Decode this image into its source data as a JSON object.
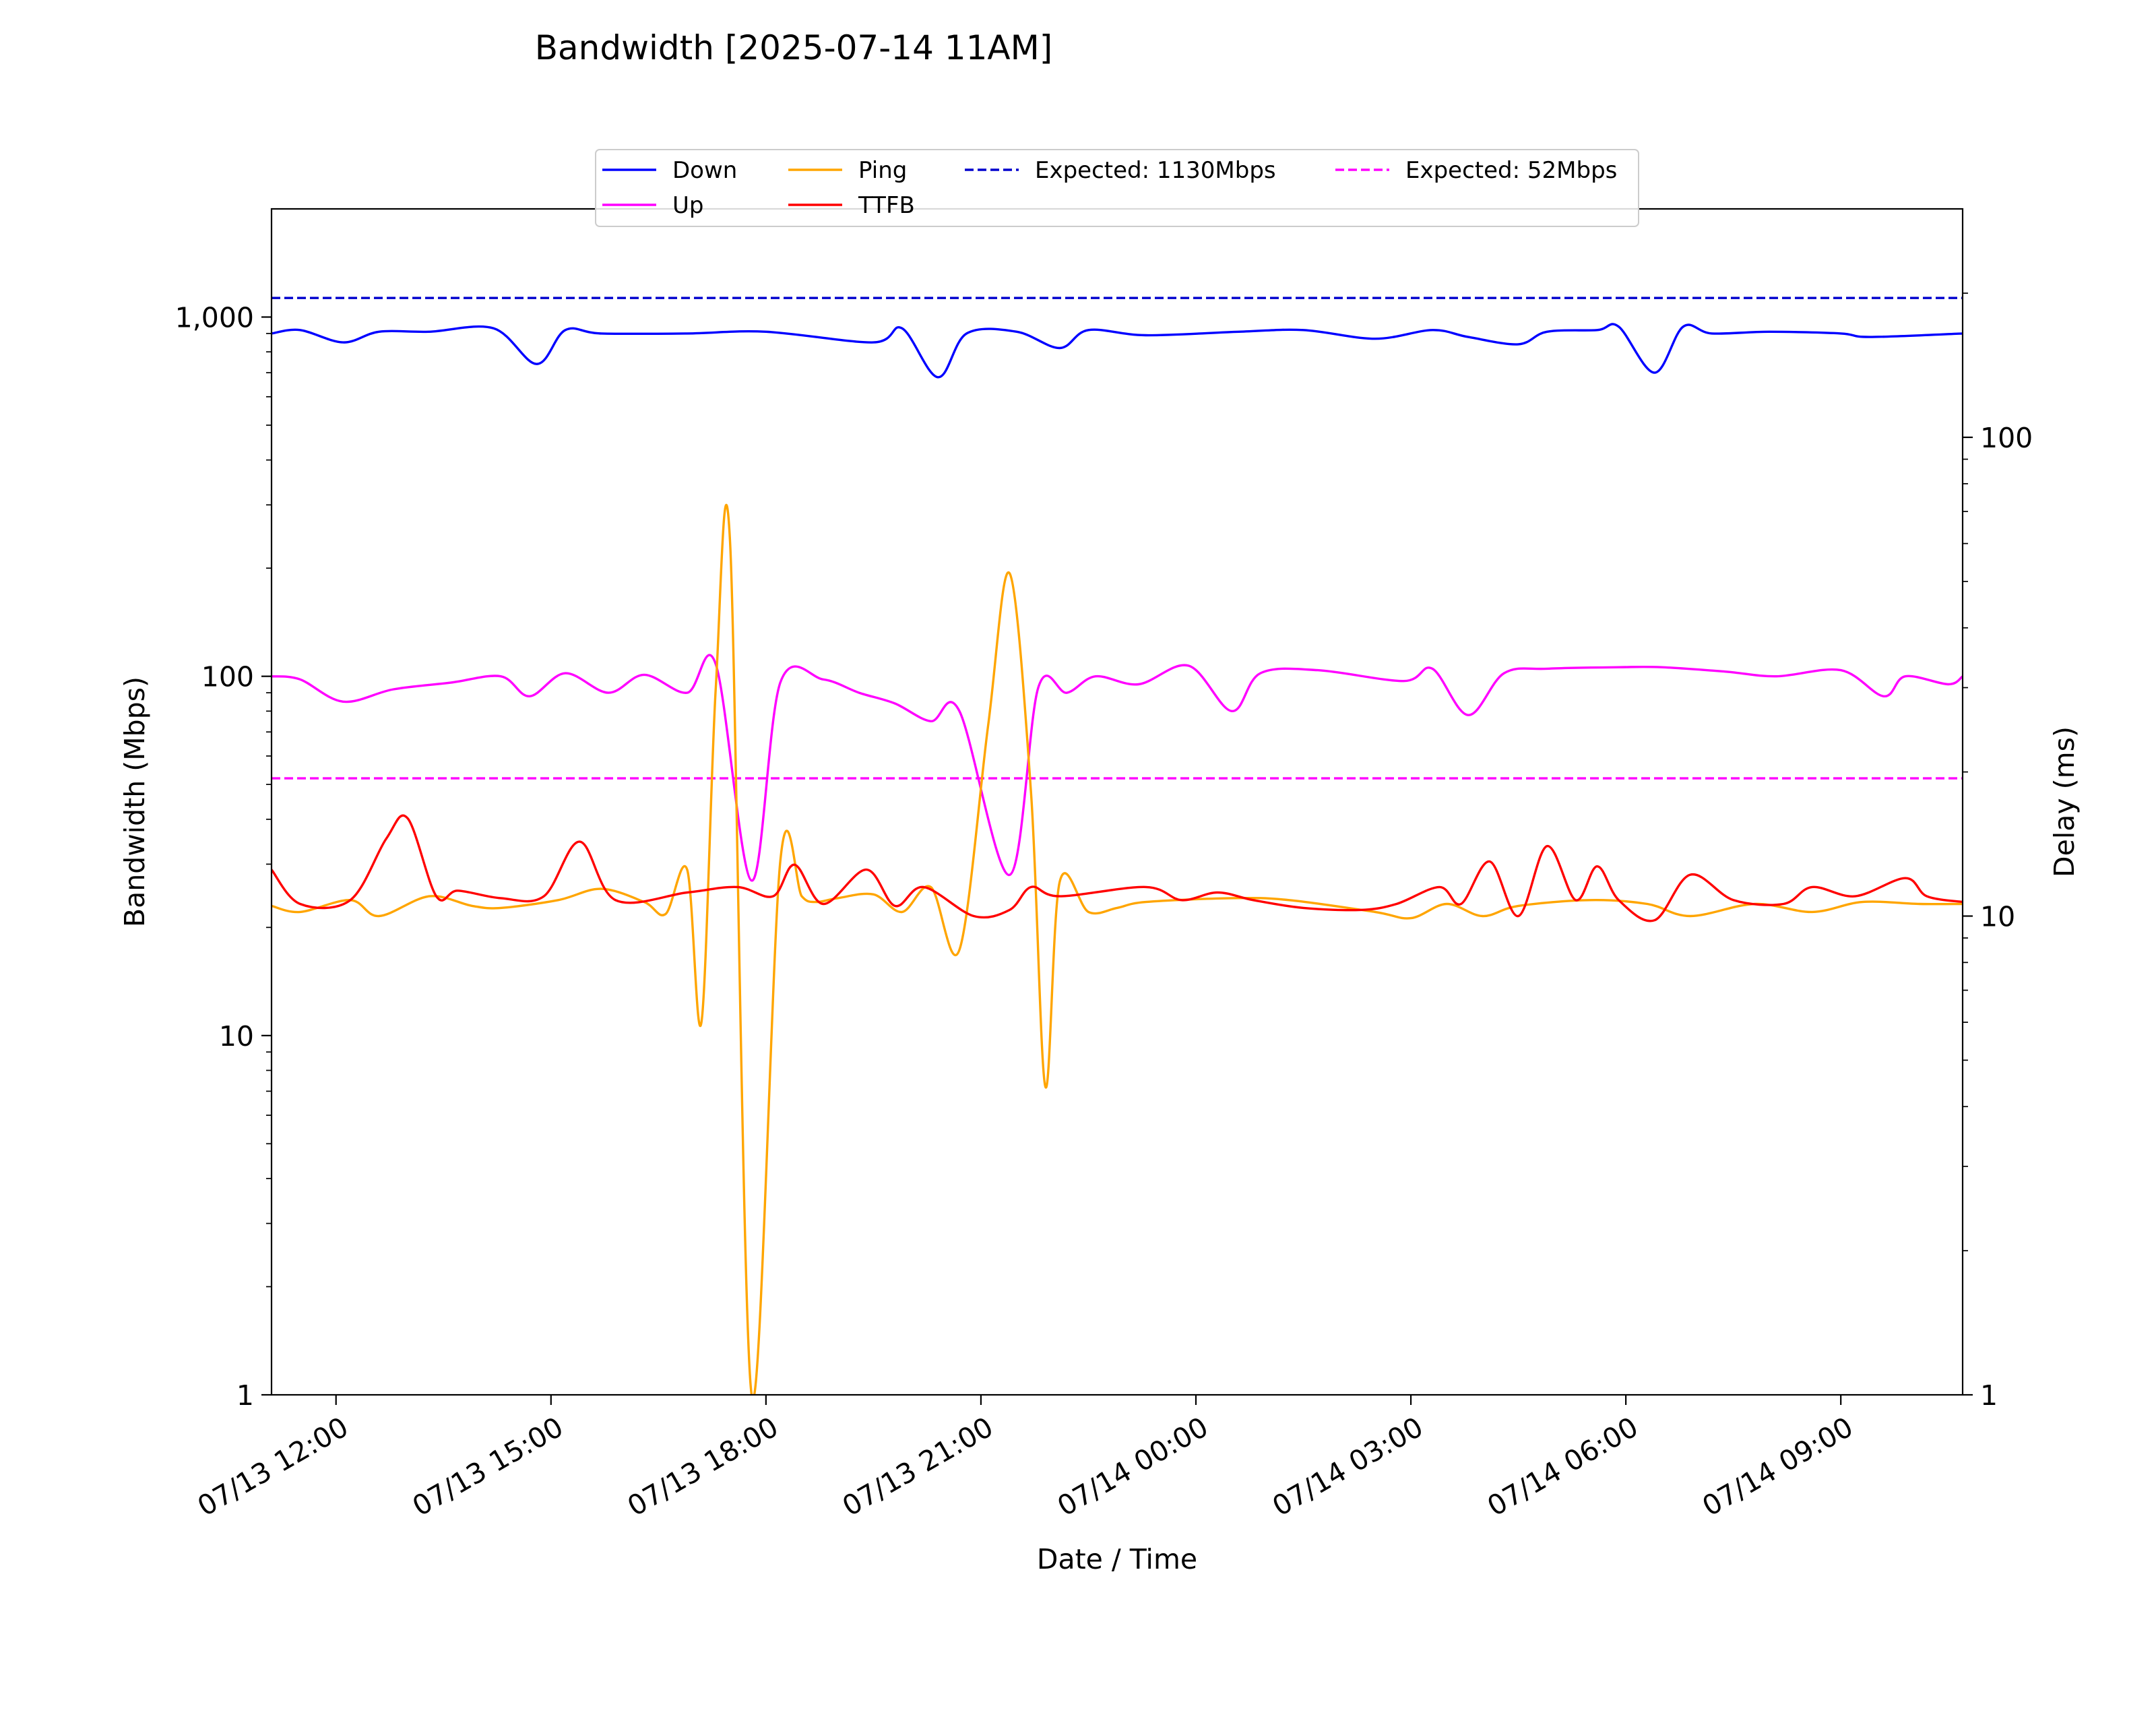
{
  "chart_data": {
    "type": "line",
    "title": "Bandwidth [2025-07-14 11AM]",
    "xlabel": "Date / Time",
    "ylabel": "Bandwidth (Mbps)",
    "y2label": "Delay (ms)",
    "x_range": [
      "2025-07-13 11:06",
      "2025-07-14 10:42"
    ],
    "ylim": [
      1,
      2000
    ],
    "y2lim": [
      1,
      300
    ],
    "yscale": "log",
    "y2scale": "log",
    "grid": false,
    "legend_position": "top-center",
    "x_ticks": [
      {
        "t": "2025-07-13 12:00",
        "label": "07/13 12:00"
      },
      {
        "t": "2025-07-13 15:00",
        "label": "07/13 15:00"
      },
      {
        "t": "2025-07-13 18:00",
        "label": "07/13 18:00"
      },
      {
        "t": "2025-07-13 21:00",
        "label": "07/13 21:00"
      },
      {
        "t": "2025-07-14 00:00",
        "label": "07/14 00:00"
      },
      {
        "t": "2025-07-14 03:00",
        "label": "07/14 03:00"
      },
      {
        "t": "2025-07-14 06:00",
        "label": "07/14 06:00"
      },
      {
        "t": "2025-07-14 09:00",
        "label": "07/14 09:00"
      }
    ],
    "y_ticks": [
      {
        "value": 1,
        "label": "1"
      },
      {
        "value": 10,
        "label": "10"
      },
      {
        "value": 100,
        "label": "100"
      },
      {
        "value": 1000,
        "label": "1,000"
      }
    ],
    "y2_ticks": [
      {
        "value": 1,
        "label": "1"
      },
      {
        "value": 10,
        "label": "10"
      },
      {
        "value": 100,
        "label": "100"
      }
    ],
    "series": [
      {
        "name": "Down",
        "axis": "left",
        "color": "#0000ff",
        "style": "solid",
        "x": [
          "2025-07-13 11:06",
          "2025-07-13 11:30",
          "2025-07-13 12:06",
          "2025-07-13 12:36",
          "2025-07-13 13:18",
          "2025-07-13 14:12",
          "2025-07-13 14:48",
          "2025-07-13 15:12",
          "2025-07-13 15:42",
          "2025-07-13 16:54",
          "2025-07-13 18:00",
          "2025-07-13 19:30",
          "2025-07-13 19:54",
          "2025-07-13 20:24",
          "2025-07-13 20:48",
          "2025-07-13 21:30",
          "2025-07-13 22:06",
          "2025-07-13 22:30",
          "2025-07-13 23:18",
          "2025-07-14 00:36",
          "2025-07-14 01:30",
          "2025-07-14 02:30",
          "2025-07-14 03:18",
          "2025-07-14 03:48",
          "2025-07-14 04:30",
          "2025-07-14 04:54",
          "2025-07-14 05:36",
          "2025-07-14 05:54",
          "2025-07-14 06:24",
          "2025-07-14 06:48",
          "2025-07-14 07:12",
          "2025-07-14 08:00",
          "2025-07-14 09:00",
          "2025-07-14 09:24",
          "2025-07-14 10:42"
        ],
        "values": [
          900,
          920,
          850,
          910,
          910,
          930,
          740,
          920,
          900,
          900,
          910,
          850,
          930,
          680,
          900,
          910,
          820,
          920,
          890,
          910,
          920,
          870,
          920,
          880,
          840,
          910,
          920,
          940,
          700,
          940,
          900,
          910,
          900,
          880,
          900
        ]
      },
      {
        "name": "Up",
        "axis": "left",
        "color": "#ff00ff",
        "style": "solid",
        "x": [
          "2025-07-13 11:06",
          "2025-07-13 11:30",
          "2025-07-13 12:06",
          "2025-07-13 12:48",
          "2025-07-13 13:36",
          "2025-07-13 14:18",
          "2025-07-13 14:42",
          "2025-07-13 15:12",
          "2025-07-13 15:48",
          "2025-07-13 16:18",
          "2025-07-13 16:54",
          "2025-07-13 17:18",
          "2025-07-13 17:48",
          "2025-07-13 18:12",
          "2025-07-13 18:48",
          "2025-07-13 19:18",
          "2025-07-13 19:48",
          "2025-07-13 20:18",
          "2025-07-13 20:42",
          "2025-07-13 21:24",
          "2025-07-13 21:48",
          "2025-07-13 22:12",
          "2025-07-13 22:36",
          "2025-07-13 23:12",
          "2025-07-13 23:54",
          "2025-07-14 00:30",
          "2025-07-14 00:54",
          "2025-07-14 01:42",
          "2025-07-14 02:54",
          "2025-07-14 03:18",
          "2025-07-14 03:48",
          "2025-07-14 04:18",
          "2025-07-14 04:54",
          "2025-07-14 05:54",
          "2025-07-14 06:30",
          "2025-07-14 07:24",
          "2025-07-14 08:06",
          "2025-07-14 09:00",
          "2025-07-14 09:36",
          "2025-07-14 09:54",
          "2025-07-14 10:30",
          "2025-07-14 10:42"
        ],
        "values": [
          100,
          98,
          85,
          92,
          96,
          100,
          88,
          102,
          90,
          101,
          90,
          108,
          27,
          96,
          98,
          90,
          84,
          75,
          80,
          28,
          93,
          90,
          100,
          95,
          107,
          80,
          102,
          104,
          97,
          105,
          78,
          102,
          105,
          106,
          106,
          103,
          100,
          104,
          88,
          100,
          95,
          100
        ]
      },
      {
        "name": "Ping",
        "axis": "right",
        "color": "#ffa500",
        "style": "solid",
        "x": [
          "2025-07-13 11:06",
          "2025-07-13 11:30",
          "2025-07-13 12:12",
          "2025-07-13 12:36",
          "2025-07-13 13:18",
          "2025-07-13 13:54",
          "2025-07-13 14:18",
          "2025-07-13 15:06",
          "2025-07-13 15:42",
          "2025-07-13 16:18",
          "2025-07-13 16:36",
          "2025-07-13 16:54",
          "2025-07-13 17:06",
          "2025-07-13 17:18",
          "2025-07-13 17:30",
          "2025-07-13 17:48",
          "2025-07-13 18:12",
          "2025-07-13 18:30",
          "2025-07-13 18:42",
          "2025-07-13 19:00",
          "2025-07-13 19:30",
          "2025-07-13 19:54",
          "2025-07-13 20:18",
          "2025-07-13 20:42",
          "2025-07-13 21:06",
          "2025-07-13 21:24",
          "2025-07-13 21:42",
          "2025-07-13 21:54",
          "2025-07-13 22:06",
          "2025-07-13 22:30",
          "2025-07-13 22:54",
          "2025-07-13 23:18",
          "2025-07-14 00:30",
          "2025-07-14 01:18",
          "2025-07-14 02:30",
          "2025-07-14 03:00",
          "2025-07-14 03:30",
          "2025-07-14 04:00",
          "2025-07-14 04:30",
          "2025-07-14 05:30",
          "2025-07-14 06:18",
          "2025-07-14 06:54",
          "2025-07-14 07:48",
          "2025-07-14 08:36",
          "2025-07-14 09:18",
          "2025-07-14 10:06",
          "2025-07-14 10:42"
        ],
        "values": [
          10.5,
          10.2,
          10.8,
          10.0,
          11.0,
          10.5,
          10.4,
          10.8,
          11.4,
          10.7,
          10.1,
          12.5,
          6.0,
          30.0,
          60.0,
          1.0,
          13.0,
          11.0,
          10.7,
          10.9,
          11.1,
          10.2,
          11.5,
          8.5,
          25.0,
          52.0,
          18.0,
          4.4,
          11.8,
          10.2,
          10.4,
          10.7,
          10.9,
          10.8,
          10.2,
          9.9,
          10.6,
          10.0,
          10.5,
          10.8,
          10.6,
          10.0,
          10.6,
          10.2,
          10.7,
          10.6,
          10.6
        ]
      },
      {
        "name": "TTFB",
        "axis": "right",
        "color": "#ff0000",
        "style": "solid",
        "x": [
          "2025-07-13 11:06",
          "2025-07-13 11:30",
          "2025-07-13 12:12",
          "2025-07-13 12:42",
          "2025-07-13 13:00",
          "2025-07-13 13:24",
          "2025-07-13 13:42",
          "2025-07-13 14:18",
          "2025-07-13 14:54",
          "2025-07-13 15:24",
          "2025-07-13 15:54",
          "2025-07-13 16:54",
          "2025-07-13 17:36",
          "2025-07-13 18:06",
          "2025-07-13 18:24",
          "2025-07-13 18:48",
          "2025-07-13 19:24",
          "2025-07-13 19:48",
          "2025-07-13 20:12",
          "2025-07-13 20:54",
          "2025-07-13 21:24",
          "2025-07-13 21:42",
          "2025-07-13 22:06",
          "2025-07-13 23:18",
          "2025-07-13 23:48",
          "2025-07-14 00:18",
          "2025-07-14 00:48",
          "2025-07-14 01:30",
          "2025-07-14 02:18",
          "2025-07-14 02:48",
          "2025-07-14 03:24",
          "2025-07-14 03:42",
          "2025-07-14 04:06",
          "2025-07-14 04:30",
          "2025-07-14 04:54",
          "2025-07-14 05:18",
          "2025-07-14 05:36",
          "2025-07-14 05:54",
          "2025-07-14 06:24",
          "2025-07-14 06:54",
          "2025-07-14 07:30",
          "2025-07-14 08:12",
          "2025-07-14 08:36",
          "2025-07-14 09:12",
          "2025-07-14 09:54",
          "2025-07-14 10:12",
          "2025-07-14 10:42"
        ],
        "values": [
          12.5,
          10.6,
          10.8,
          14.5,
          16.0,
          11.0,
          11.3,
          10.9,
          11.0,
          14.3,
          10.8,
          11.2,
          11.5,
          11.0,
          12.8,
          10.6,
          12.5,
          10.5,
          11.5,
          10.0,
          10.3,
          11.5,
          11.0,
          11.5,
          10.8,
          11.2,
          10.8,
          10.4,
          10.3,
          10.6,
          11.5,
          10.6,
          13.0,
          10.0,
          14.0,
          10.8,
          12.7,
          10.8,
          9.8,
          12.2,
          10.8,
          10.6,
          11.5,
          11.0,
          12.0,
          11.0,
          10.7
        ]
      },
      {
        "name": "Expected: 1130Mbps",
        "axis": "left",
        "color": "#0000cd",
        "style": "dashed",
        "x": [
          "2025-07-13 11:06",
          "2025-07-14 10:42"
        ],
        "values": [
          1130,
          1130
        ]
      },
      {
        "name": "Expected: 52Mbps",
        "axis": "left",
        "color": "#ff00ff",
        "style": "dashed",
        "x": [
          "2025-07-13 11:06",
          "2025-07-14 10:42"
        ],
        "values": [
          52,
          52
        ]
      }
    ],
    "legend_order": [
      "Down",
      "Up",
      "Ping",
      "TTFB",
      "Expected: 1130Mbps",
      "Expected: 52Mbps"
    ]
  }
}
